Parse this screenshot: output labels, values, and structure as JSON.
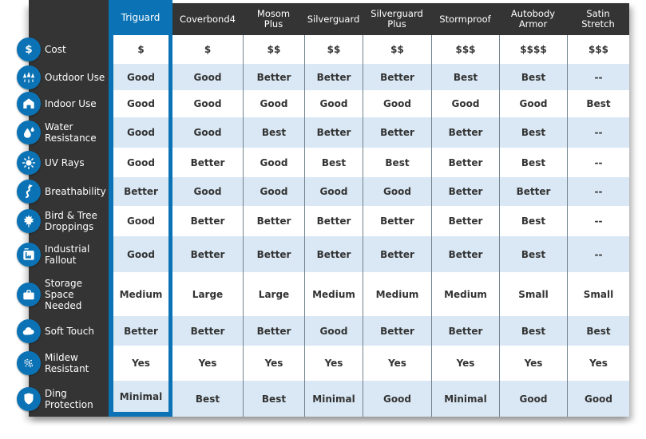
{
  "chart_data": {
    "type": "table",
    "columns": [
      "Triguard",
      "Coverbond4",
      "Mosom\nPlus",
      "Silverguard",
      "Silverguard\nPlus",
      "Stormproof",
      "Autobody\nArmor",
      "Satin\nStretch"
    ],
    "highlighted_column": "Triguard",
    "rows": [
      {
        "label": "Cost",
        "icon": "dollar-icon",
        "values": [
          "$",
          "$",
          "$$",
          "$$",
          "$$",
          "$$$",
          "$$$$",
          "$$$"
        ]
      },
      {
        "label": "Outdoor Use",
        "icon": "trees-icon",
        "values": [
          "Good",
          "Good",
          "Better",
          "Better",
          "Better",
          "Best",
          "Best",
          "--"
        ]
      },
      {
        "label": "Indoor Use",
        "icon": "house-icon",
        "values": [
          "Good",
          "Good",
          "Good",
          "Good",
          "Good",
          "Good",
          "Good",
          "Best"
        ]
      },
      {
        "label": "Water Resistance",
        "icon": "water-drops-icon",
        "values": [
          "Good",
          "Good",
          "Best",
          "Better",
          "Better",
          "Better",
          "Best",
          "--"
        ]
      },
      {
        "label": "UV Rays",
        "icon": "sun-icon",
        "values": [
          "Good",
          "Better",
          "Good",
          "Best",
          "Best",
          "Better",
          "Best",
          "--"
        ]
      },
      {
        "label": "Breathability",
        "icon": "winding-arrow-icon",
        "values": [
          "Better",
          "Good",
          "Good",
          "Good",
          "Good",
          "Better",
          "Better",
          "--"
        ]
      },
      {
        "label": "Bird & Tree Droppings",
        "icon": "maple-leaf-icon",
        "values": [
          "Good",
          "Better",
          "Better",
          "Better",
          "Better",
          "Better",
          "Best",
          "--"
        ]
      },
      {
        "label": "Industrial Fallout",
        "icon": "factory-icon",
        "values": [
          "Good",
          "Better",
          "Better",
          "Better",
          "Better",
          "Better",
          "Best",
          "--"
        ]
      },
      {
        "label": "Storage Space Needed",
        "icon": "suitcase-icon",
        "values": [
          "Medium",
          "Large",
          "Large",
          "Medium",
          "Medium",
          "Medium",
          "Small",
          "Small"
        ]
      },
      {
        "label": "Soft Touch",
        "icon": "cloud-icon",
        "values": [
          "Better",
          "Better",
          "Better",
          "Good",
          "Better",
          "Better",
          "Best",
          "Best"
        ]
      },
      {
        "label": "Mildew Resistant",
        "icon": "spores-icon",
        "values": [
          "Yes",
          "Yes",
          "Yes",
          "Yes",
          "Yes",
          "Yes",
          "Yes",
          "Yes"
        ]
      },
      {
        "label": "Ding Protection",
        "icon": "shield-icon",
        "values": [
          "Minimal",
          "Best",
          "Best",
          "Minimal",
          "Good",
          "Minimal",
          "Good",
          "Good"
        ]
      }
    ]
  },
  "colors": {
    "accent_blue": "#0b73b5",
    "panel_dark": "#343434",
    "row_alternate": "#d9e8f4",
    "separator": "#72838f",
    "cell_text": "#333333",
    "header_text": "#ffffff"
  }
}
